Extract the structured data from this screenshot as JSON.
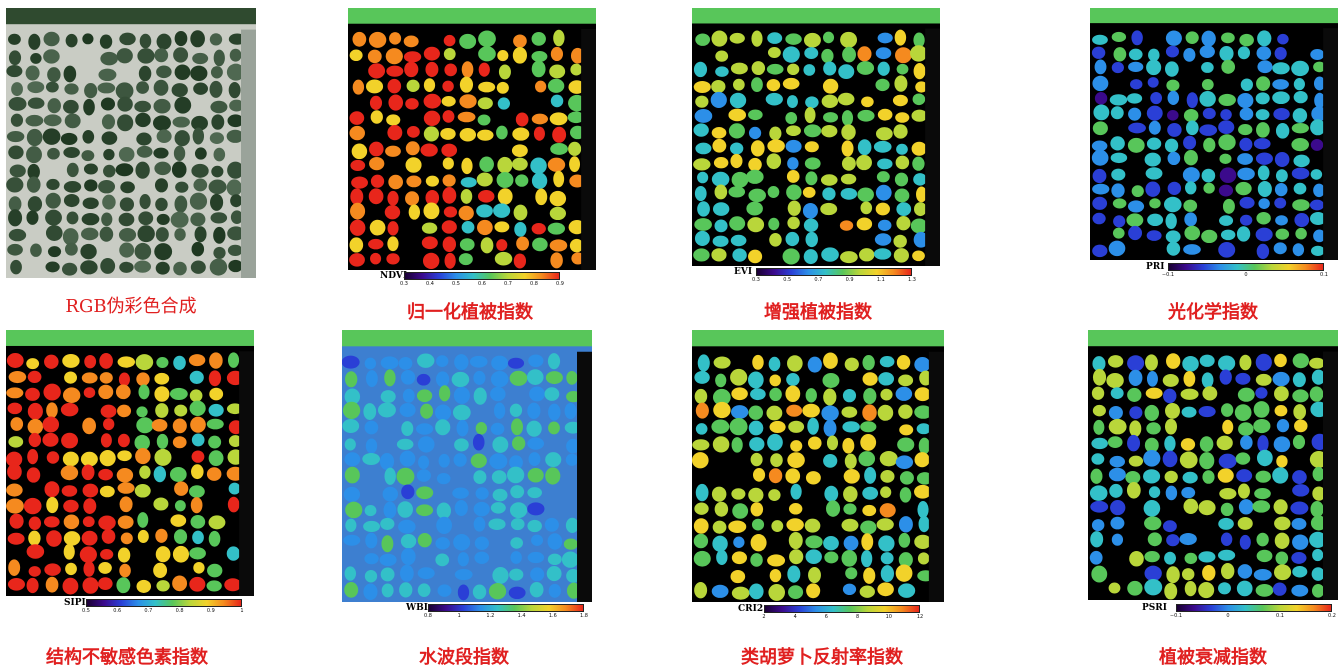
{
  "panels": [
    {
      "id": "rgb",
      "caption": "RGB伪彩色合成",
      "colorbar": null,
      "palette": "rgb"
    },
    {
      "id": "ndvi",
      "caption": "归一化植被指数",
      "colorbar": {
        "name": "NDVI",
        "ticks": [
          "0.3",
          "0.4",
          "0.5",
          "0.6",
          "0.7",
          "0.8",
          "0.9"
        ]
      },
      "palette": "hot"
    },
    {
      "id": "evi",
      "caption": "增强植被指数",
      "colorbar": {
        "name": "EVI",
        "ticks": [
          "0.3",
          "0.5",
          "0.7",
          "0.9",
          "1.1",
          "1.3"
        ]
      },
      "palette": "mid"
    },
    {
      "id": "pri",
      "caption": "光化学指数",
      "colorbar": {
        "name": "PRI",
        "ticks": [
          "−0.1",
          "0",
          "0.1"
        ]
      },
      "palette": "cool"
    },
    {
      "id": "sipi",
      "caption": "结构不敏感色素指数",
      "colorbar": {
        "name": "SIPI",
        "ticks": [
          "0.5",
          "0.6",
          "0.7",
          "0.8",
          "0.9",
          "1"
        ]
      },
      "palette": "hot"
    },
    {
      "id": "wbi",
      "caption": "水波段指数",
      "colorbar": {
        "name": "WBI",
        "ticks": [
          "0.8",
          "1",
          "1.2",
          "1.4",
          "1.6",
          "1.8"
        ]
      },
      "palette": "water"
    },
    {
      "id": "cri2",
      "caption": "类胡萝卜反射率指数",
      "colorbar": {
        "name": "CRI2",
        "ticks": [
          "2",
          "4",
          "6",
          "8",
          "10",
          "12"
        ]
      },
      "palette": "mid"
    },
    {
      "id": "psri",
      "caption": "植被衰减指数",
      "colorbar": {
        "name": "PSRI",
        "ticks": [
          "−0.1",
          "0",
          "0.1",
          "0.2"
        ]
      },
      "palette": "sparse"
    }
  ],
  "colormap": [
    "#1a0033",
    "#3b0a8c",
    "#2a3fd6",
    "#2c8fe8",
    "#33c0c8",
    "#58c65a",
    "#b9d63a",
    "#f2d22a",
    "#f58a1f",
    "#e8261b"
  ]
}
